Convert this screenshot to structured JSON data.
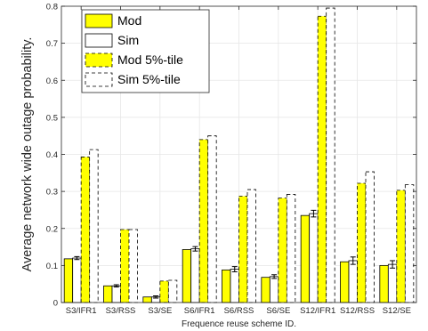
{
  "chart_data": {
    "type": "bar",
    "title": "",
    "xlabel": "Frequence reuse scheme ID.",
    "ylabel": "Average network wide outage probability.",
    "ylim": [
      0,
      0.8
    ],
    "yticks": [
      0,
      0.1,
      0.2,
      0.3,
      0.4,
      0.5,
      0.6,
      0.7,
      0.8
    ],
    "ytick_labels": [
      "0",
      "0.1",
      "0.2",
      "0.3",
      "0.4",
      "0.5",
      "0.6",
      "0.7",
      "0.8"
    ],
    "grid": true,
    "legend_position": "top-left",
    "categories": [
      "S3/IFR1",
      "S3/RSS",
      "S3/SE",
      "S6/IFR1",
      "S6/RSS",
      "S6/SE",
      "S12/IFR1",
      "S12/RSS",
      "S12/SE"
    ],
    "series": [
      {
        "name": "Mod",
        "style": "solid-yellow",
        "values": [
          0.118,
          0.045,
          0.015,
          0.143,
          0.088,
          0.068,
          0.235,
          0.11,
          0.1
        ]
      },
      {
        "name": "Sim",
        "style": "solid-white",
        "values": [
          0.12,
          0.045,
          0.015,
          0.145,
          0.09,
          0.07,
          0.24,
          0.113,
          0.103
        ],
        "error": [
          0.004,
          0.003,
          0.003,
          0.006,
          0.007,
          0.005,
          0.009,
          0.01,
          0.01
        ]
      },
      {
        "name": "Mod 5%-tile",
        "style": "dashed-yellow",
        "values": [
          0.393,
          0.197,
          0.058,
          0.44,
          0.287,
          0.282,
          0.773,
          0.322,
          0.303
        ]
      },
      {
        "name": "Sim 5%-tile",
        "style": "dashed-white",
        "values": [
          0.413,
          0.197,
          0.06,
          0.45,
          0.305,
          0.292,
          0.795,
          0.353,
          0.318
        ]
      }
    ],
    "colors": {
      "yellow": "#ffff00",
      "white": "#ffffff",
      "edge": "#000000",
      "grid": "#e6e6e6",
      "axis": "#262626"
    }
  }
}
